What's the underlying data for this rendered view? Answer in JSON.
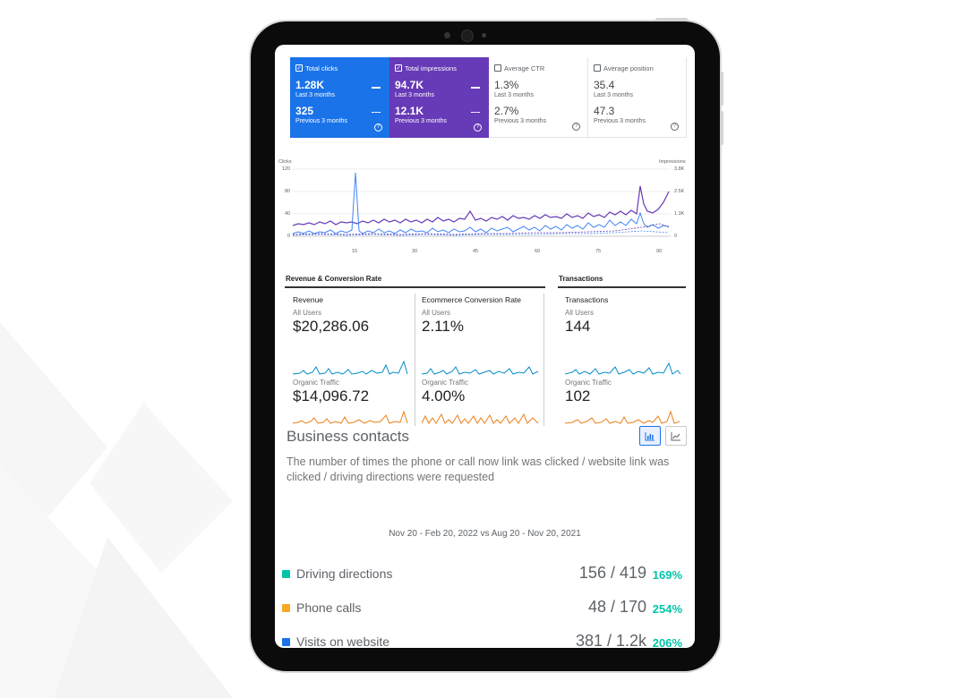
{
  "metrics": [
    {
      "label": "Total clicks",
      "value": "1.28K",
      "period": "Last 3 months",
      "prev_value": "325",
      "prev_period": "Previous 3 months",
      "checked": true
    },
    {
      "label": "Total impressions",
      "value": "94.7K",
      "period": "Last 3 months",
      "prev_value": "12.1K",
      "prev_period": "Previous 3 months",
      "checked": true
    },
    {
      "label": "Average CTR",
      "value": "1.3%",
      "period": "Last 3 months",
      "prev_value": "2.7%",
      "prev_period": "Previous 3 months",
      "checked": false
    },
    {
      "label": "Average position",
      "value": "35.4",
      "period": "Last 3 months",
      "prev_value": "47.3",
      "prev_period": "Previous 3 months",
      "checked": false
    }
  ],
  "performance_chart": {
    "left_axis_title": "Clicks",
    "right_axis_title": "Impressions",
    "left_ticks": [
      "120",
      "80",
      "40",
      "0"
    ],
    "right_ticks": [
      "3.8K",
      "2.5K",
      "1.3K",
      "0"
    ],
    "x_ticks": [
      "15",
      "30",
      "45",
      "60",
      "75",
      "90"
    ],
    "colors": {
      "clicks": "#4285f4",
      "impressions": "#673ab7"
    }
  },
  "analytics": {
    "revenue_section_title": "Revenue & Conversion Rate",
    "transactions_section_title": "Transactions",
    "columns": [
      {
        "name": "Revenue",
        "all_label": "All Users",
        "all_value": "$20,286.06",
        "organic_label": "Organic Traffic",
        "organic_value": "$14,096.72"
      },
      {
        "name": "Ecommerce Conversion Rate",
        "all_label": "All Users",
        "all_value": "2.11%",
        "organic_label": "Organic Traffic",
        "organic_value": "4.00%"
      },
      {
        "name": "Transactions",
        "all_label": "All Users",
        "all_value": "144",
        "organic_label": "Organic Traffic",
        "organic_value": "102"
      }
    ],
    "colors": {
      "all_users": "#058dc7",
      "organic": "#ed7e17"
    }
  },
  "business_contacts": {
    "title": "Business contacts",
    "description": "The number of times the phone or call now link was clicked / website link was clicked / driving directions were requested",
    "date_range": "Nov 20 - Feb 20, 2022 vs Aug 20 - Nov 20, 2021",
    "rows": [
      {
        "label": "Driving directions",
        "value": "156 / 419",
        "change": "169%",
        "color": "#00c4a7"
      },
      {
        "label": "Phone calls",
        "value": "48 / 170",
        "change": "254%",
        "color": "#f9a825"
      },
      {
        "label": "Visits on website",
        "value": "381 / 1.2k",
        "change": "206%",
        "color": "#1a73e8"
      }
    ]
  }
}
